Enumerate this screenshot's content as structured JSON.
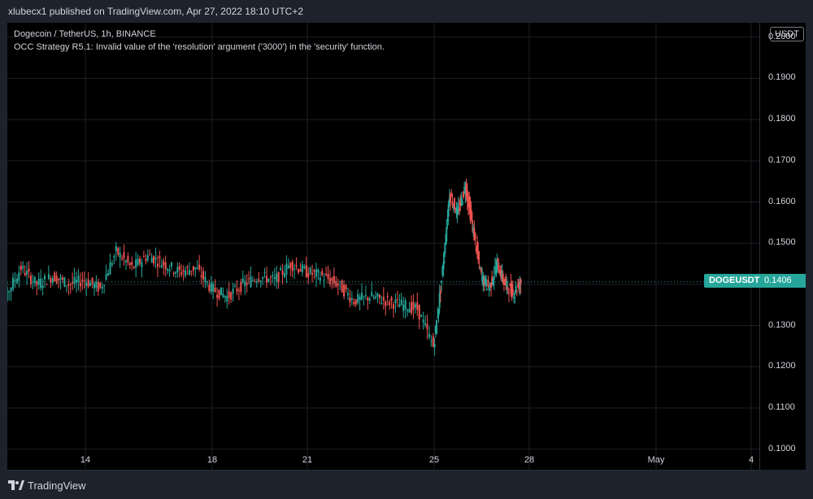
{
  "header": {
    "publisher": "xlubecx1 published on TradingView.com, Apr 27, 2022 18:10 UTC+2"
  },
  "legend": {
    "symbol_line": "Dogecoin / TetherUS, 1h, BINANCE",
    "error_line": "OCC Strategy R5.1: Invalid value of the 'resolution' argument ('3000') in the 'security' function."
  },
  "currency_button": "USDT",
  "symbol_badge": "DOGEUSDT",
  "price_badge": "0.1406",
  "footer": {
    "brand": "TradingView"
  },
  "colors": {
    "up": "#26a69a",
    "down": "#ef5350",
    "background": "#000000",
    "frame": "#1e222d",
    "grid": "#1c1f26"
  },
  "chart_data": {
    "type": "line",
    "series_style": "candlestick",
    "ylim": [
      0.095,
      0.2035
    ],
    "y_ticks": [
      "0.2000",
      "0.1900",
      "0.1800",
      "0.1700",
      "0.1600",
      "0.1500",
      "0.1400",
      "0.1300",
      "0.1200",
      "0.1100",
      "0.1000"
    ],
    "x_ticks": [
      "14",
      "18",
      "21",
      "25",
      "28",
      "May",
      "4"
    ],
    "grid": true,
    "last_price": 0.1406,
    "x": [
      11.0,
      11.5,
      12.0,
      12.5,
      13.0,
      13.5,
      14.0,
      14.5,
      15.0,
      15.5,
      16.0,
      16.5,
      17.0,
      17.5,
      18.0,
      18.5,
      19.0,
      19.5,
      20.0,
      20.5,
      21.0,
      21.5,
      22.0,
      22.5,
      23.0,
      23.5,
      24.0,
      24.5,
      25.0,
      25.25,
      25.5,
      25.75,
      26.0,
      26.25,
      26.5,
      26.75,
      27.0,
      27.25,
      27.5,
      27.75
    ],
    "close": [
      0.141,
      0.137,
      0.144,
      0.14,
      0.142,
      0.14,
      0.141,
      0.139,
      0.148,
      0.144,
      0.147,
      0.145,
      0.143,
      0.144,
      0.139,
      0.137,
      0.14,
      0.142,
      0.141,
      0.145,
      0.143,
      0.142,
      0.14,
      0.136,
      0.137,
      0.136,
      0.135,
      0.134,
      0.125,
      0.141,
      0.162,
      0.157,
      0.164,
      0.153,
      0.142,
      0.139,
      0.145,
      0.14,
      0.138,
      0.1406
    ]
  }
}
